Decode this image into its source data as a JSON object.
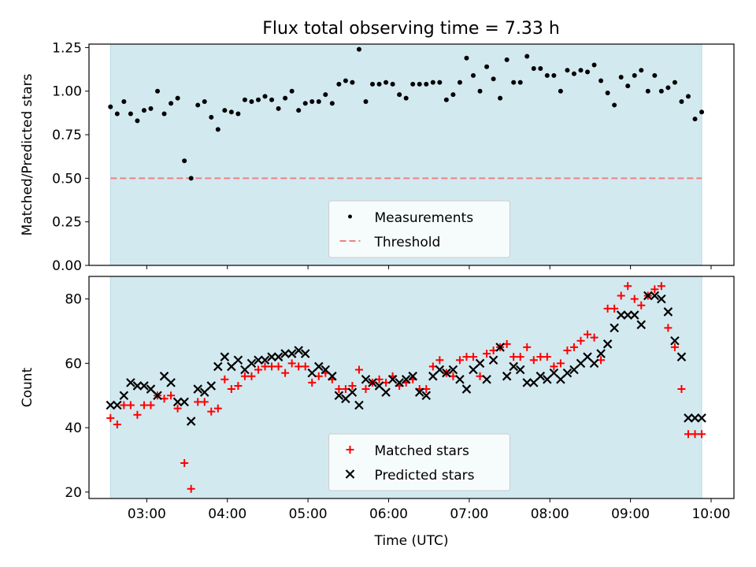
{
  "chart_data": [
    {
      "type": "scatter",
      "title": "Flux total observing time = 7.33 h",
      "xlabel": "",
      "ylabel": "Matched/Predicted stars",
      "xlim": [
        "02:17",
        "10:17"
      ],
      "ylim": [
        0,
        1.27
      ],
      "x_ticks": [
        "03:00",
        "04:00",
        "05:00",
        "06:00",
        "07:00",
        "08:00",
        "09:00",
        "10:00"
      ],
      "y_ticks": [
        "0.00",
        "0.25",
        "0.50",
        "0.75",
        "1.00",
        "1.25"
      ],
      "observing_window": [
        "02:33",
        "09:53"
      ],
      "legend": {
        "placement": "lower-center",
        "entries": [
          "Measurements",
          "Threshold"
        ]
      },
      "threshold": {
        "name": "Threshold",
        "value": 0.5,
        "color": "#f08080",
        "style": "dashed"
      },
      "series": [
        {
          "name": "Measurements",
          "marker": "dot",
          "color": "#000000",
          "x": [
            "02:33",
            "02:38",
            "02:43",
            "02:48",
            "02:53",
            "02:58",
            "03:03",
            "03:08",
            "03:13",
            "03:18",
            "03:23",
            "03:28",
            "03:33",
            "03:38",
            "03:43",
            "03:48",
            "03:53",
            "03:58",
            "04:03",
            "04:08",
            "04:13",
            "04:18",
            "04:23",
            "04:28",
            "04:33",
            "04:38",
            "04:43",
            "04:48",
            "04:53",
            "04:58",
            "05:03",
            "05:08",
            "05:13",
            "05:18",
            "05:23",
            "05:28",
            "05:33",
            "05:38",
            "05:43",
            "05:48",
            "05:53",
            "05:58",
            "06:03",
            "06:08",
            "06:13",
            "06:18",
            "06:23",
            "06:28",
            "06:33",
            "06:38",
            "06:43",
            "06:48",
            "06:53",
            "06:58",
            "07:03",
            "07:08",
            "07:13",
            "07:18",
            "07:23",
            "07:28",
            "07:33",
            "07:38",
            "07:43",
            "07:48",
            "07:53",
            "07:58",
            "08:03",
            "08:08",
            "08:13",
            "08:18",
            "08:23",
            "08:28",
            "08:33",
            "08:38",
            "08:43",
            "08:48",
            "08:53",
            "08:58",
            "09:03",
            "09:08",
            "09:13",
            "09:18",
            "09:23",
            "09:28",
            "09:33",
            "09:38",
            "09:43",
            "09:48",
            "09:53"
          ],
          "y": [
            0.91,
            0.87,
            0.94,
            0.87,
            0.83,
            0.89,
            0.9,
            1.0,
            0.87,
            0.93,
            0.96,
            0.6,
            0.5,
            0.92,
            0.94,
            0.85,
            0.78,
            0.89,
            0.88,
            0.87,
            0.95,
            0.94,
            0.95,
            0.97,
            0.95,
            0.9,
            0.96,
            1.0,
            0.89,
            0.93,
            0.94,
            0.94,
            0.98,
            0.93,
            1.04,
            1.06,
            1.05,
            1.24,
            0.94,
            1.04,
            1.04,
            1.05,
            1.04,
            0.98,
            0.96,
            1.04,
            1.04,
            1.04,
            1.05,
            1.05,
            0.95,
            0.98,
            1.05,
            1.19,
            1.09,
            1.0,
            1.14,
            1.07,
            0.96,
            1.18,
            1.05,
            1.05,
            1.2,
            1.13,
            1.13,
            1.09,
            1.09,
            1.0,
            1.12,
            1.1,
            1.12,
            1.11,
            1.15,
            1.06,
            0.99,
            0.92,
            1.08,
            1.03,
            1.09,
            1.12,
            1.0,
            1.09,
            1.0,
            1.02,
            1.05,
            0.94,
            0.97,
            0.84,
            0.88
          ]
        }
      ]
    },
    {
      "type": "scatter",
      "title": "",
      "xlabel": "Time (UTC)",
      "ylabel": "Count",
      "xlim": [
        "02:17",
        "10:17"
      ],
      "ylim": [
        18,
        87
      ],
      "x_ticks": [
        "03:00",
        "04:00",
        "05:00",
        "06:00",
        "07:00",
        "08:00",
        "09:00",
        "10:00"
      ],
      "y_ticks": [
        "20",
        "40",
        "60",
        "80"
      ],
      "observing_window": [
        "02:33",
        "09:53"
      ],
      "legend": {
        "placement": "lower-center",
        "entries": [
          "Matched stars",
          "Predicted stars"
        ]
      },
      "series": [
        {
          "name": "Matched stars",
          "marker": "plus",
          "color": "#ff0000",
          "x": [
            "02:33",
            "02:38",
            "02:43",
            "02:48",
            "02:53",
            "02:58",
            "03:03",
            "03:08",
            "03:13",
            "03:18",
            "03:23",
            "03:28",
            "03:33",
            "03:38",
            "03:43",
            "03:48",
            "03:53",
            "03:58",
            "04:03",
            "04:08",
            "04:13",
            "04:18",
            "04:23",
            "04:28",
            "04:33",
            "04:38",
            "04:43",
            "04:48",
            "04:53",
            "04:58",
            "05:03",
            "05:08",
            "05:13",
            "05:18",
            "05:23",
            "05:28",
            "05:33",
            "05:38",
            "05:43",
            "05:48",
            "05:53",
            "05:58",
            "06:03",
            "06:08",
            "06:13",
            "06:18",
            "06:23",
            "06:28",
            "06:33",
            "06:38",
            "06:43",
            "06:48",
            "06:53",
            "06:58",
            "07:03",
            "07:08",
            "07:13",
            "07:18",
            "07:23",
            "07:28",
            "07:33",
            "07:38",
            "07:43",
            "07:48",
            "07:53",
            "07:58",
            "08:03",
            "08:08",
            "08:13",
            "08:18",
            "08:23",
            "08:28",
            "08:33",
            "08:38",
            "08:43",
            "08:48",
            "08:53",
            "08:58",
            "09:03",
            "09:08",
            "09:13",
            "09:18",
            "09:23",
            "09:28",
            "09:33",
            "09:38",
            "09:43",
            "09:48",
            "09:53"
          ],
          "y": [
            43,
            41,
            47,
            47,
            44,
            47,
            47,
            50,
            49,
            50,
            46,
            29,
            21,
            48,
            48,
            45,
            46,
            55,
            52,
            53,
            56,
            56,
            58,
            59,
            59,
            59,
            57,
            60,
            59,
            59,
            54,
            56,
            57,
            55,
            52,
            52,
            53,
            58,
            52,
            54,
            55,
            54,
            56,
            53,
            54,
            55,
            52,
            52,
            59,
            61,
            57,
            56,
            61,
            62,
            62,
            56,
            63,
            64,
            65,
            66,
            62,
            62,
            65,
            61,
            62,
            62,
            59,
            60,
            64,
            65,
            67,
            69,
            68,
            61,
            77,
            77,
            81,
            84,
            80,
            78,
            81,
            83,
            84,
            71,
            65,
            52,
            38,
            38,
            38
          ]
        },
        {
          "name": "Predicted stars",
          "marker": "x",
          "color": "#000000",
          "x": [
            "02:33",
            "02:38",
            "02:43",
            "02:48",
            "02:53",
            "02:58",
            "03:03",
            "03:08",
            "03:13",
            "03:18",
            "03:23",
            "03:28",
            "03:33",
            "03:38",
            "03:43",
            "03:48",
            "03:53",
            "03:58",
            "04:03",
            "04:08",
            "04:13",
            "04:18",
            "04:23",
            "04:28",
            "04:33",
            "04:38",
            "04:43",
            "04:48",
            "04:53",
            "04:58",
            "05:03",
            "05:08",
            "05:13",
            "05:18",
            "05:23",
            "05:28",
            "05:33",
            "05:38",
            "05:43",
            "05:48",
            "05:53",
            "05:58",
            "06:03",
            "06:08",
            "06:13",
            "06:18",
            "06:23",
            "06:28",
            "06:33",
            "06:38",
            "06:43",
            "06:48",
            "06:53",
            "06:58",
            "07:03",
            "07:08",
            "07:13",
            "07:18",
            "07:23",
            "07:28",
            "07:33",
            "07:38",
            "07:43",
            "07:48",
            "07:53",
            "07:58",
            "08:03",
            "08:08",
            "08:13",
            "08:18",
            "08:23",
            "08:28",
            "08:33",
            "08:38",
            "08:43",
            "08:48",
            "08:53",
            "08:58",
            "09:03",
            "09:08",
            "09:13",
            "09:18",
            "09:23",
            "09:28",
            "09:33",
            "09:38",
            "09:43",
            "09:48",
            "09:53"
          ],
          "y": [
            47,
            47,
            50,
            54,
            53,
            53,
            52,
            50,
            56,
            54,
            48,
            48,
            42,
            52,
            51,
            53,
            59,
            62,
            59,
            61,
            58,
            60,
            61,
            61,
            62,
            62,
            63,
            63,
            64,
            63,
            57,
            59,
            58,
            56,
            50,
            49,
            51,
            47,
            55,
            54,
            53,
            51,
            55,
            54,
            55,
            56,
            51,
            50,
            56,
            58,
            57,
            58,
            55,
            52,
            58,
            60,
            55,
            61,
            65,
            56,
            59,
            58,
            54,
            54,
            56,
            55,
            57,
            55,
            57,
            58,
            60,
            62,
            60,
            63,
            66,
            71,
            75,
            75,
            75,
            72,
            81,
            81,
            80,
            76,
            67,
            62,
            43,
            43,
            43
          ]
        }
      ]
    }
  ]
}
